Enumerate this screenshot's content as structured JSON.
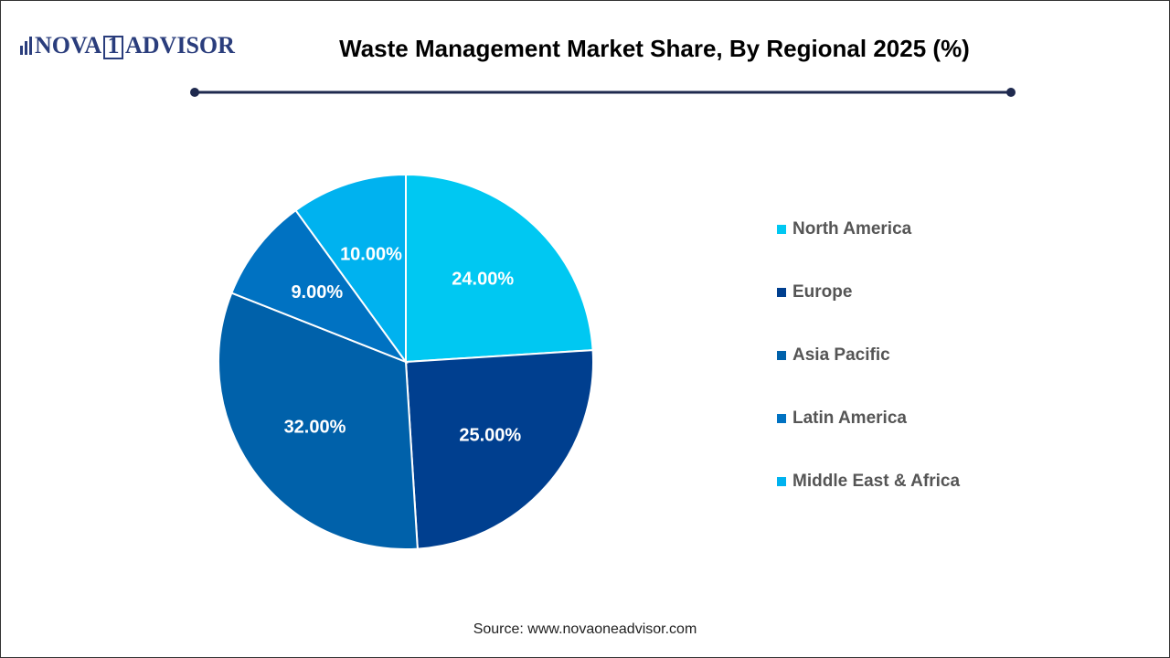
{
  "logo": {
    "part1": "NOVA",
    "part2": "1",
    "part3": "ADVISOR"
  },
  "source": "Source: www.novaoneadvisor.com",
  "chart_data": {
    "type": "pie",
    "title": "Waste Management Market Share, By Regional 2025 (%)",
    "categories": [
      "North America",
      "Europe",
      "Asia Pacific",
      "Latin America",
      "Middle East & Africa"
    ],
    "values": [
      24,
      25,
      32,
      9,
      10
    ],
    "value_labels": [
      "24.00%",
      "25.00%",
      "32.00%",
      "9.00%",
      "10.00%"
    ],
    "colors": [
      "#00c8f2",
      "#003f8f",
      "#0061aa",
      "#0072c2",
      "#00b2ef"
    ],
    "legend": "right"
  }
}
